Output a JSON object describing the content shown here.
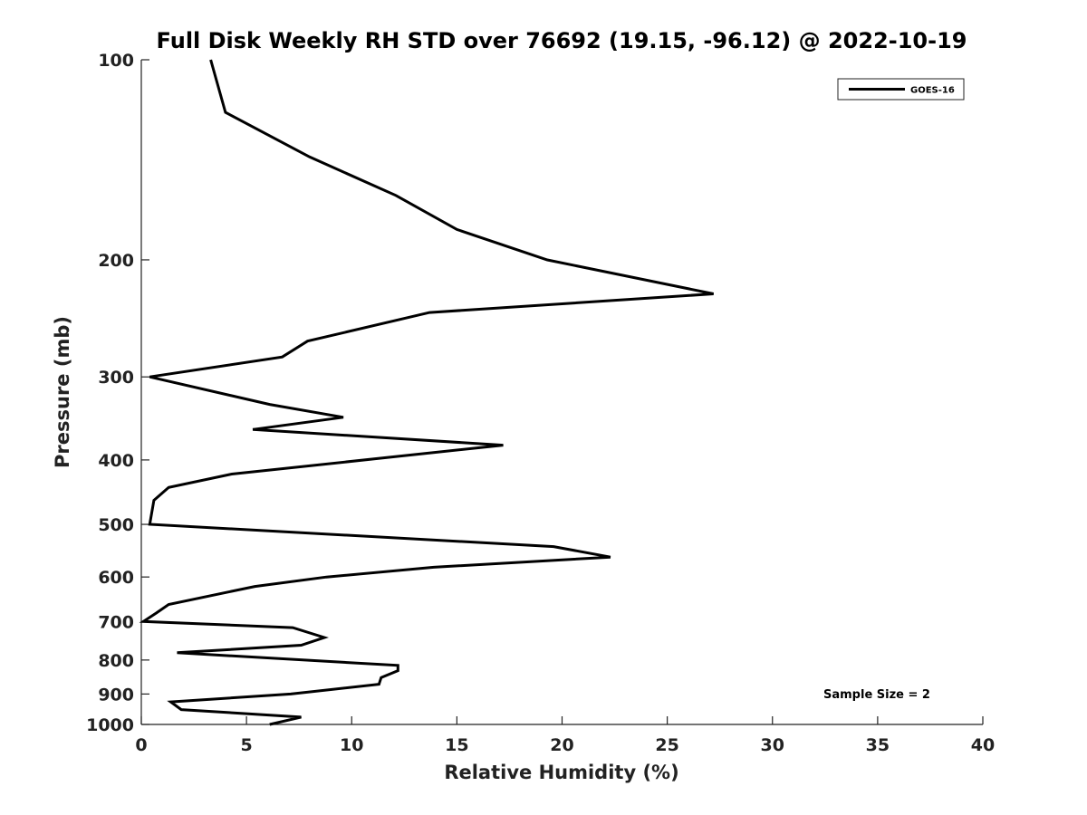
{
  "chart_data": {
    "type": "line",
    "title": "Full Disk Weekly RH STD over 76692 (19.15, -96.12) @ 2022-10-19",
    "xlabel": "Relative Humidity (%)",
    "ylabel": "Pressure (mb)",
    "xlim": [
      0,
      40
    ],
    "ylim": [
      1000,
      100
    ],
    "y_scale": "log",
    "y_inverted": true,
    "x_ticks": [
      0,
      5,
      10,
      15,
      20,
      25,
      30,
      35,
      40
    ],
    "y_ticks": [
      100,
      200,
      300,
      400,
      500,
      600,
      700,
      800,
      900,
      1000
    ],
    "grid": false,
    "legend_position": "top-right",
    "series": [
      {
        "name": "GOES-16",
        "color": "#000000",
        "points": [
          {
            "x": 6.1,
            "y": 1000
          },
          {
            "x": 7.6,
            "y": 975
          },
          {
            "x": 1.9,
            "y": 950
          },
          {
            "x": 1.4,
            "y": 925
          },
          {
            "x": 7.1,
            "y": 900
          },
          {
            "x": 11.3,
            "y": 870
          },
          {
            "x": 11.4,
            "y": 850
          },
          {
            "x": 12.2,
            "y": 830
          },
          {
            "x": 12.2,
            "y": 815
          },
          {
            "x": 1.7,
            "y": 780
          },
          {
            "x": 7.6,
            "y": 760
          },
          {
            "x": 8.7,
            "y": 740
          },
          {
            "x": 7.2,
            "y": 715
          },
          {
            "x": 0.1,
            "y": 700
          },
          {
            "x": 0.7,
            "y": 680
          },
          {
            "x": 1.3,
            "y": 660
          },
          {
            "x": 5.4,
            "y": 620
          },
          {
            "x": 8.8,
            "y": 600
          },
          {
            "x": 13.9,
            "y": 580
          },
          {
            "x": 22.3,
            "y": 560
          },
          {
            "x": 19.6,
            "y": 540
          },
          {
            "x": 0.4,
            "y": 500
          },
          {
            "x": 0.6,
            "y": 460
          },
          {
            "x": 1.3,
            "y": 440
          },
          {
            "x": 4.3,
            "y": 420
          },
          {
            "x": 17.2,
            "y": 380
          },
          {
            "x": 5.3,
            "y": 360
          },
          {
            "x": 9.6,
            "y": 345
          },
          {
            "x": 6.1,
            "y": 330
          },
          {
            "x": 0.4,
            "y": 300
          },
          {
            "x": 6.7,
            "y": 280
          },
          {
            "x": 7.9,
            "y": 265
          },
          {
            "x": 13.7,
            "y": 240
          },
          {
            "x": 27.2,
            "y": 225
          },
          {
            "x": 19.3,
            "y": 200
          },
          {
            "x": 15.0,
            "y": 180
          },
          {
            "x": 12.1,
            "y": 160
          },
          {
            "x": 8.0,
            "y": 140
          },
          {
            "x": 4.0,
            "y": 120
          },
          {
            "x": 3.3,
            "y": 100
          }
        ]
      }
    ],
    "annotations": [
      "Sample Size = 2"
    ]
  }
}
